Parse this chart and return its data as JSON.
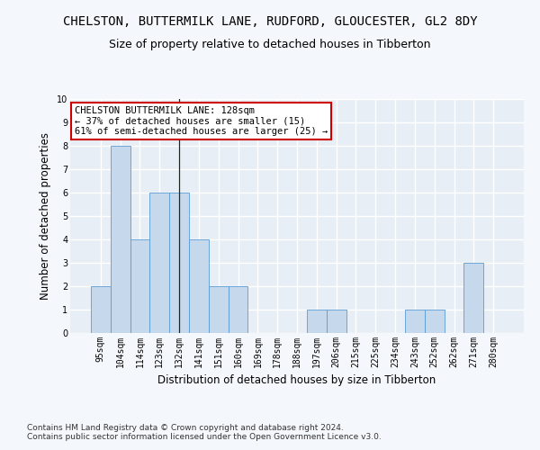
{
  "title": "CHELSTON, BUTTERMILK LANE, RUDFORD, GLOUCESTER, GL2 8DY",
  "subtitle": "Size of property relative to detached houses in Tibberton",
  "xlabel": "Distribution of detached houses by size in Tibberton",
  "ylabel": "Number of detached properties",
  "categories": [
    "95sqm",
    "104sqm",
    "114sqm",
    "123sqm",
    "132sqm",
    "141sqm",
    "151sqm",
    "160sqm",
    "169sqm",
    "178sqm",
    "188sqm",
    "197sqm",
    "206sqm",
    "215sqm",
    "225sqm",
    "234sqm",
    "243sqm",
    "252sqm",
    "262sqm",
    "271sqm",
    "280sqm"
  ],
  "values": [
    2,
    8,
    4,
    6,
    6,
    4,
    2,
    2,
    0,
    0,
    0,
    1,
    1,
    0,
    0,
    0,
    1,
    1,
    0,
    3,
    0
  ],
  "bar_color": "#c6d9ec",
  "bar_edge_color": "#5b9bd5",
  "highlight_index": 4,
  "highlight_line_color": "#222222",
  "annotation_text": "CHELSTON BUTTERMILK LANE: 128sqm\n← 37% of detached houses are smaller (15)\n61% of semi-detached houses are larger (25) →",
  "annotation_box_color": "#ffffff",
  "annotation_box_edge_color": "#cc0000",
  "ylim": [
    0,
    10
  ],
  "yticks": [
    0,
    1,
    2,
    3,
    4,
    5,
    6,
    7,
    8,
    9,
    10
  ],
  "footnote": "Contains HM Land Registry data © Crown copyright and database right 2024.\nContains public sector information licensed under the Open Government Licence v3.0.",
  "background_color": "#f4f7fb",
  "plot_background": "#e8eef5",
  "grid_color": "#ffffff",
  "title_fontsize": 10,
  "subtitle_fontsize": 9,
  "axis_label_fontsize": 8.5,
  "tick_fontsize": 7,
  "annotation_fontsize": 7.5,
  "footnote_fontsize": 6.5
}
